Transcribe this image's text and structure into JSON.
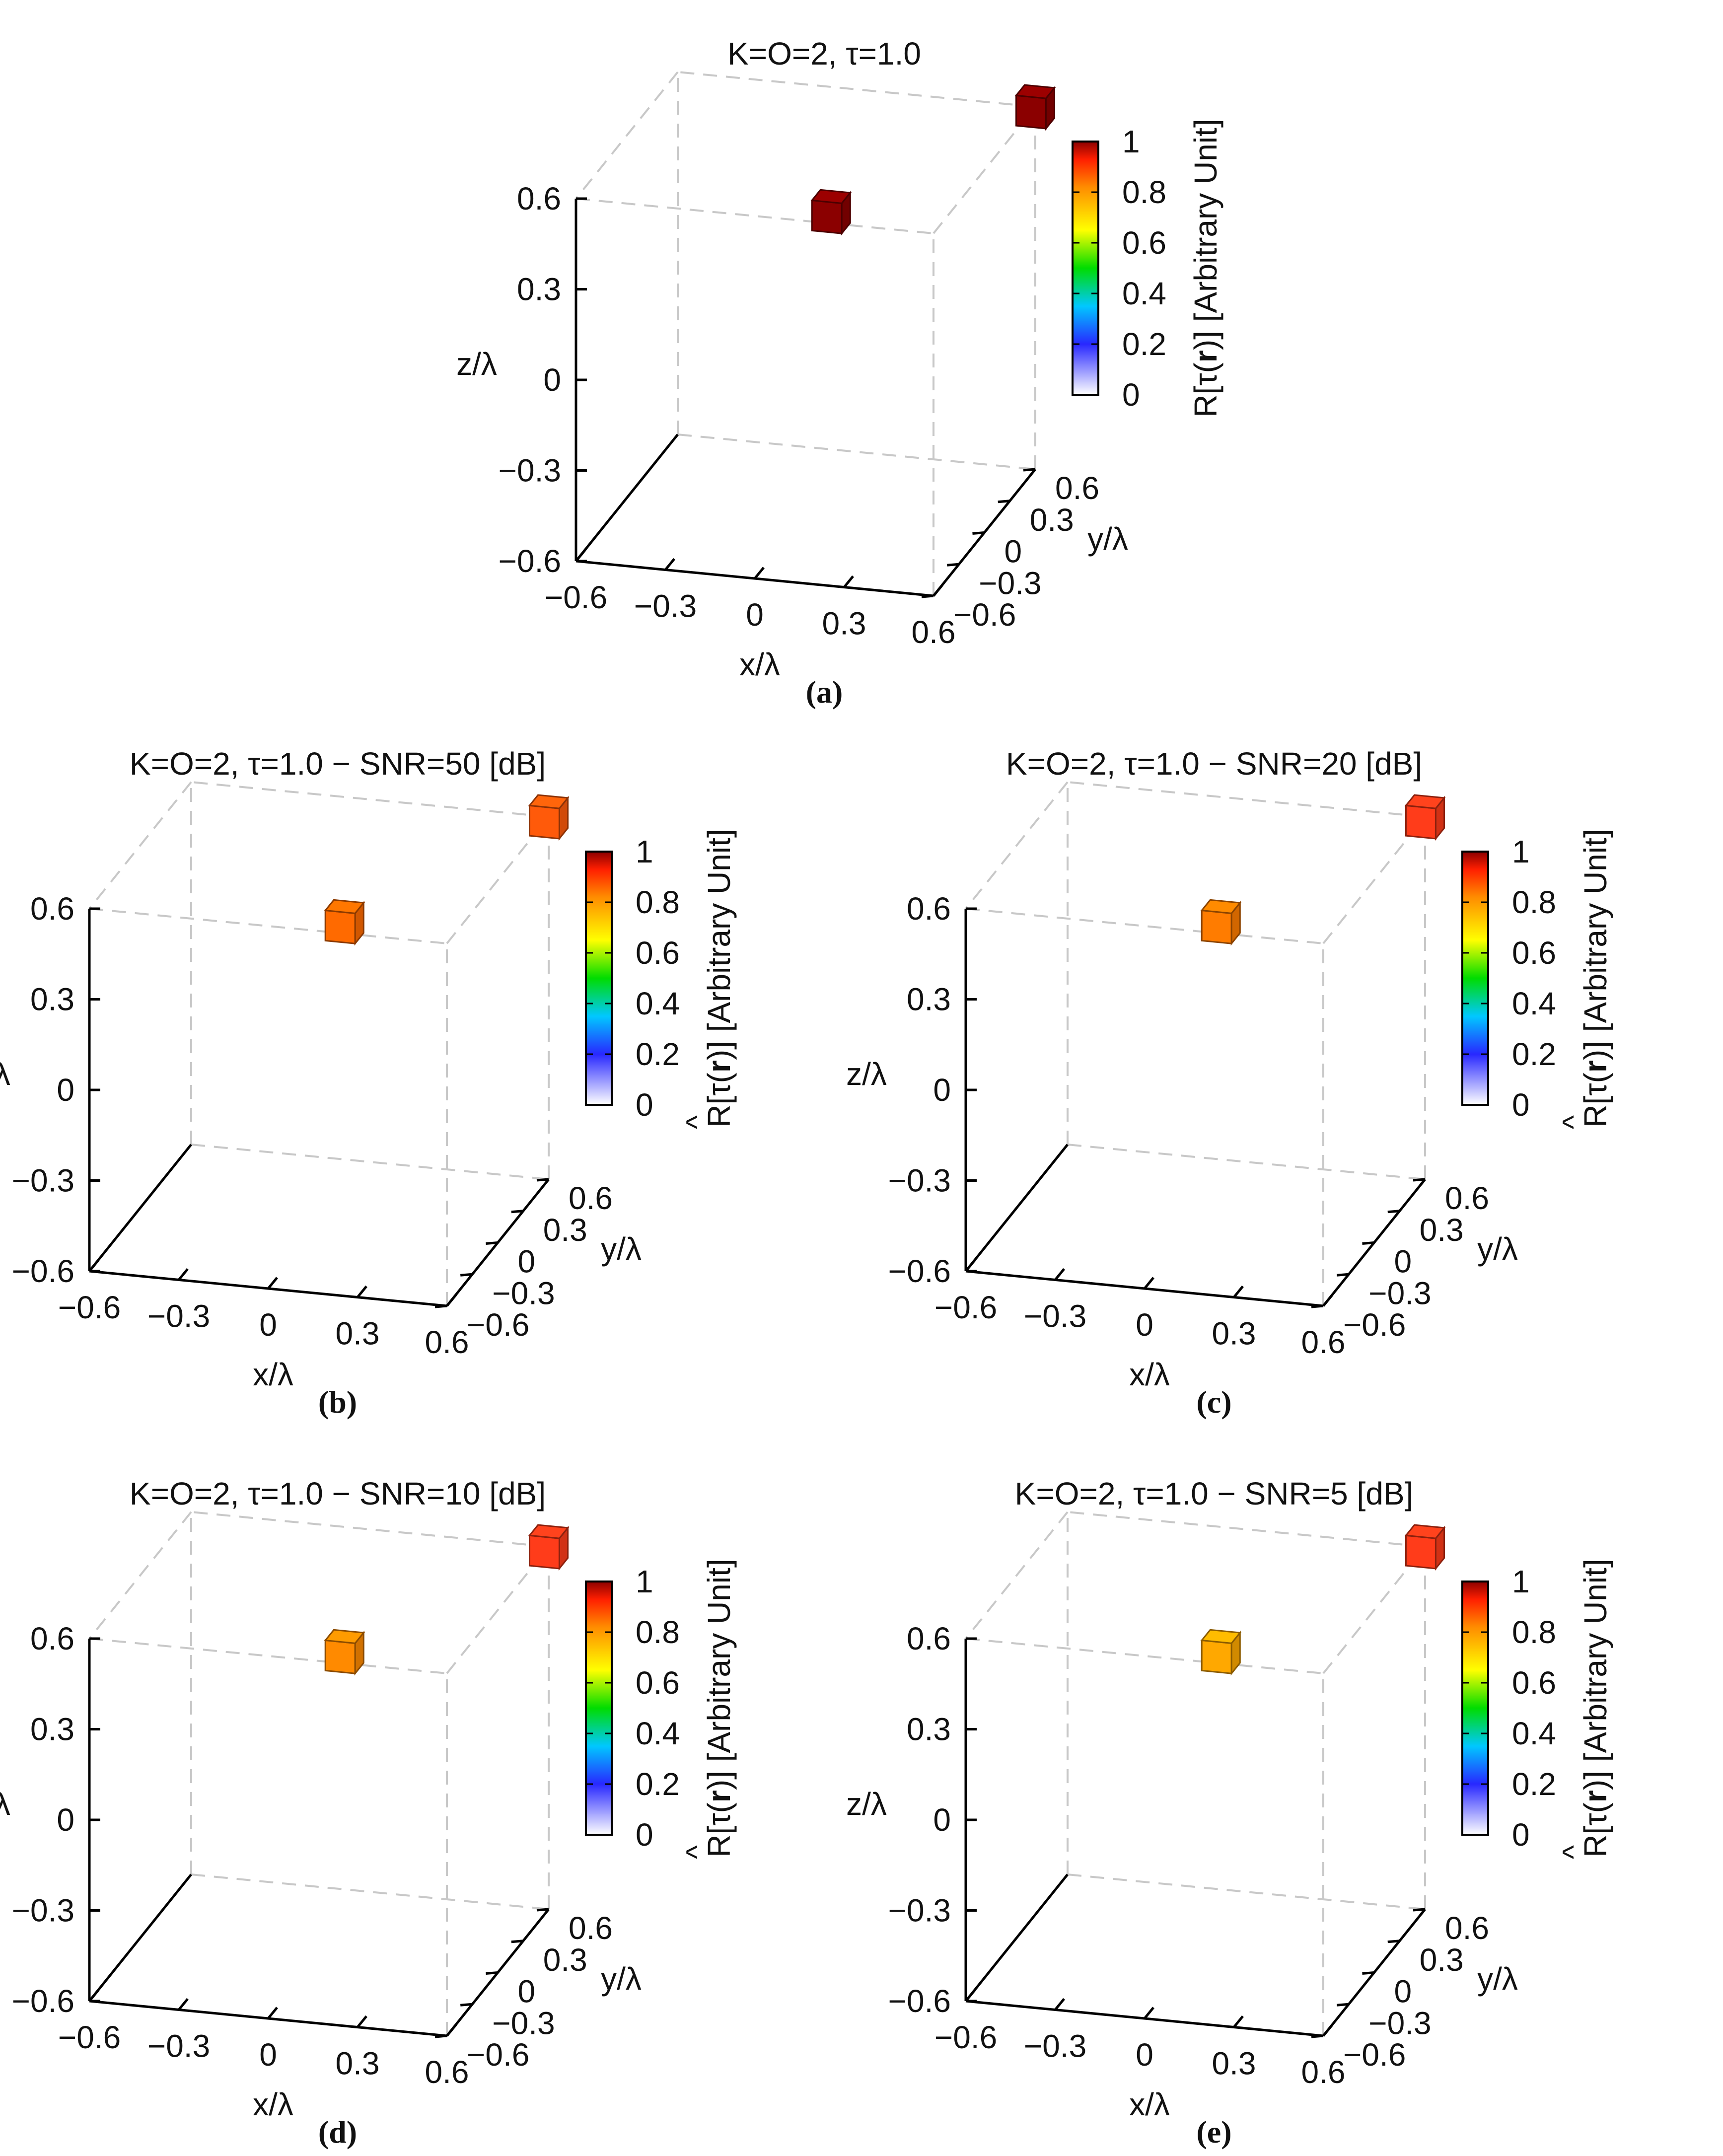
{
  "charts": [
    {
      "id": "a",
      "title": "K=O=2, τ=1.0",
      "caption": "(a)",
      "colorbar_label_prefix": "R[τ(",
      "colorbar_label_bold": "r",
      "colorbar_label_suffix": ")] [Arbitrary Unit]",
      "colorbar_hat": false
    },
    {
      "id": "b",
      "title": "K=O=2, τ=1.0 − SNR=50 [dB]",
      "caption": "(b)",
      "colorbar_label_prefix": "R[τ(",
      "colorbar_label_bold": "r",
      "colorbar_label_suffix": ")] [Arbitrary Unit]",
      "colorbar_hat": true
    },
    {
      "id": "c",
      "title": "K=O=2, τ=1.0 − SNR=20 [dB]",
      "caption": "(c)",
      "colorbar_label_prefix": "R[τ(",
      "colorbar_label_bold": "r",
      "colorbar_label_suffix": ")] [Arbitrary Unit]",
      "colorbar_hat": true
    },
    {
      "id": "d",
      "title": "K=O=2, τ=1.0 − SNR=10 [dB]",
      "caption": "(d)",
      "colorbar_label_prefix": "R[τ(",
      "colorbar_label_bold": "r",
      "colorbar_label_suffix": ")] [Arbitrary Unit]",
      "colorbar_hat": true
    },
    {
      "id": "e",
      "title": "K=O=2, τ=1.0 − SNR=5 [dB]",
      "caption": "(e)",
      "colorbar_label_prefix": "R[τ(",
      "colorbar_label_bold": "r",
      "colorbar_label_suffix": ")] [Arbitrary Unit]",
      "colorbar_hat": true
    }
  ],
  "axis_labels": {
    "x": "x/λ",
    "y": "y/λ",
    "z": "z/λ"
  },
  "tick_labels": {
    "x": [
      "−0.6",
      "−0.3",
      "0",
      "0.3",
      "0.6"
    ],
    "y": [
      "−0.6",
      "−0.3",
      "0",
      "0.3",
      "0.6"
    ],
    "z": [
      "−0.6",
      "−0.3",
      "0",
      "0.3",
      "0.6"
    ],
    "colorbar": [
      "0",
      "0.2",
      "0.4",
      "0.6",
      "0.8",
      "1"
    ]
  },
  "chart_data": [
    {
      "type": "scatter3d",
      "title": "K=O=2, τ=1.0",
      "xlabel": "x/λ",
      "ylabel": "y/λ",
      "zlabel": "z/λ",
      "xlim": [
        -0.6,
        0.6
      ],
      "ylim": [
        -0.6,
        0.6
      ],
      "zlim": [
        -0.6,
        0.6
      ],
      "colorbar": {
        "label": "R[τ(r)] [Arbitrary Unit]",
        "range": [
          0,
          1
        ]
      },
      "points": [
        {
          "x": 0.0,
          "y": 0.3,
          "z": 0.3,
          "value": 1.0,
          "color": "#8b0000"
        },
        {
          "x": 0.6,
          "y": 0.6,
          "z": 0.6,
          "value": 1.0,
          "color": "#8b0000"
        }
      ]
    },
    {
      "type": "scatter3d",
      "title": "K=O=2, τ=1.0 − SNR=50 [dB]",
      "xlabel": "x/λ",
      "ylabel": "y/λ",
      "zlabel": "z/λ",
      "xlim": [
        -0.6,
        0.6
      ],
      "ylim": [
        -0.6,
        0.6
      ],
      "zlim": [
        -0.6,
        0.6
      ],
      "colorbar": {
        "label": "R̂[τ(r)] [Arbitrary Unit]",
        "range": [
          0,
          1
        ]
      },
      "points": [
        {
          "x": 0.0,
          "y": 0.3,
          "z": 0.3,
          "value": 0.85,
          "color": "#ff6a00"
        },
        {
          "x": 0.6,
          "y": 0.6,
          "z": 0.6,
          "value": 0.87,
          "color": "#ff5a0a"
        }
      ]
    },
    {
      "type": "scatter3d",
      "title": "K=O=2, τ=1.0 − SNR=20 [dB]",
      "xlabel": "x/λ",
      "ylabel": "y/λ",
      "zlabel": "z/λ",
      "xlim": [
        -0.6,
        0.6
      ],
      "ylim": [
        -0.6,
        0.6
      ],
      "zlim": [
        -0.6,
        0.6
      ],
      "colorbar": {
        "label": "R̂[τ(r)] [Arbitrary Unit]",
        "range": [
          0,
          1
        ]
      },
      "points": [
        {
          "x": 0.0,
          "y": 0.3,
          "z": 0.3,
          "value": 0.83,
          "color": "#ff7c00"
        },
        {
          "x": 0.6,
          "y": 0.6,
          "z": 0.6,
          "value": 0.9,
          "color": "#ff3c1a"
        }
      ]
    },
    {
      "type": "scatter3d",
      "title": "K=O=2, τ=1.0 − SNR=10 [dB]",
      "xlabel": "x/λ",
      "ylabel": "y/λ",
      "zlabel": "z/λ",
      "xlim": [
        -0.6,
        0.6
      ],
      "ylim": [
        -0.6,
        0.6
      ],
      "zlim": [
        -0.6,
        0.6
      ],
      "colorbar": {
        "label": "R̂[τ(r)] [Arbitrary Unit]",
        "range": [
          0,
          1
        ]
      },
      "points": [
        {
          "x": 0.0,
          "y": 0.3,
          "z": 0.3,
          "value": 0.8,
          "color": "#ff8a00"
        },
        {
          "x": 0.6,
          "y": 0.6,
          "z": 0.6,
          "value": 0.9,
          "color": "#ff3c1a"
        }
      ]
    },
    {
      "type": "scatter3d",
      "title": "K=O=2, τ=1.0 − SNR=5 [dB]",
      "xlabel": "x/λ",
      "ylabel": "y/λ",
      "zlabel": "z/λ",
      "xlim": [
        -0.6,
        0.6
      ],
      "ylim": [
        -0.6,
        0.6
      ],
      "zlim": [
        -0.6,
        0.6
      ],
      "colorbar": {
        "label": "R̂[τ(r)] [Arbitrary Unit]",
        "range": [
          0,
          1
        ]
      },
      "points": [
        {
          "x": 0.0,
          "y": 0.3,
          "z": 0.3,
          "value": 0.75,
          "color": "#ffa800"
        },
        {
          "x": 0.6,
          "y": 0.6,
          "z": 0.6,
          "value": 0.9,
          "color": "#ff3c1a"
        }
      ]
    }
  ]
}
